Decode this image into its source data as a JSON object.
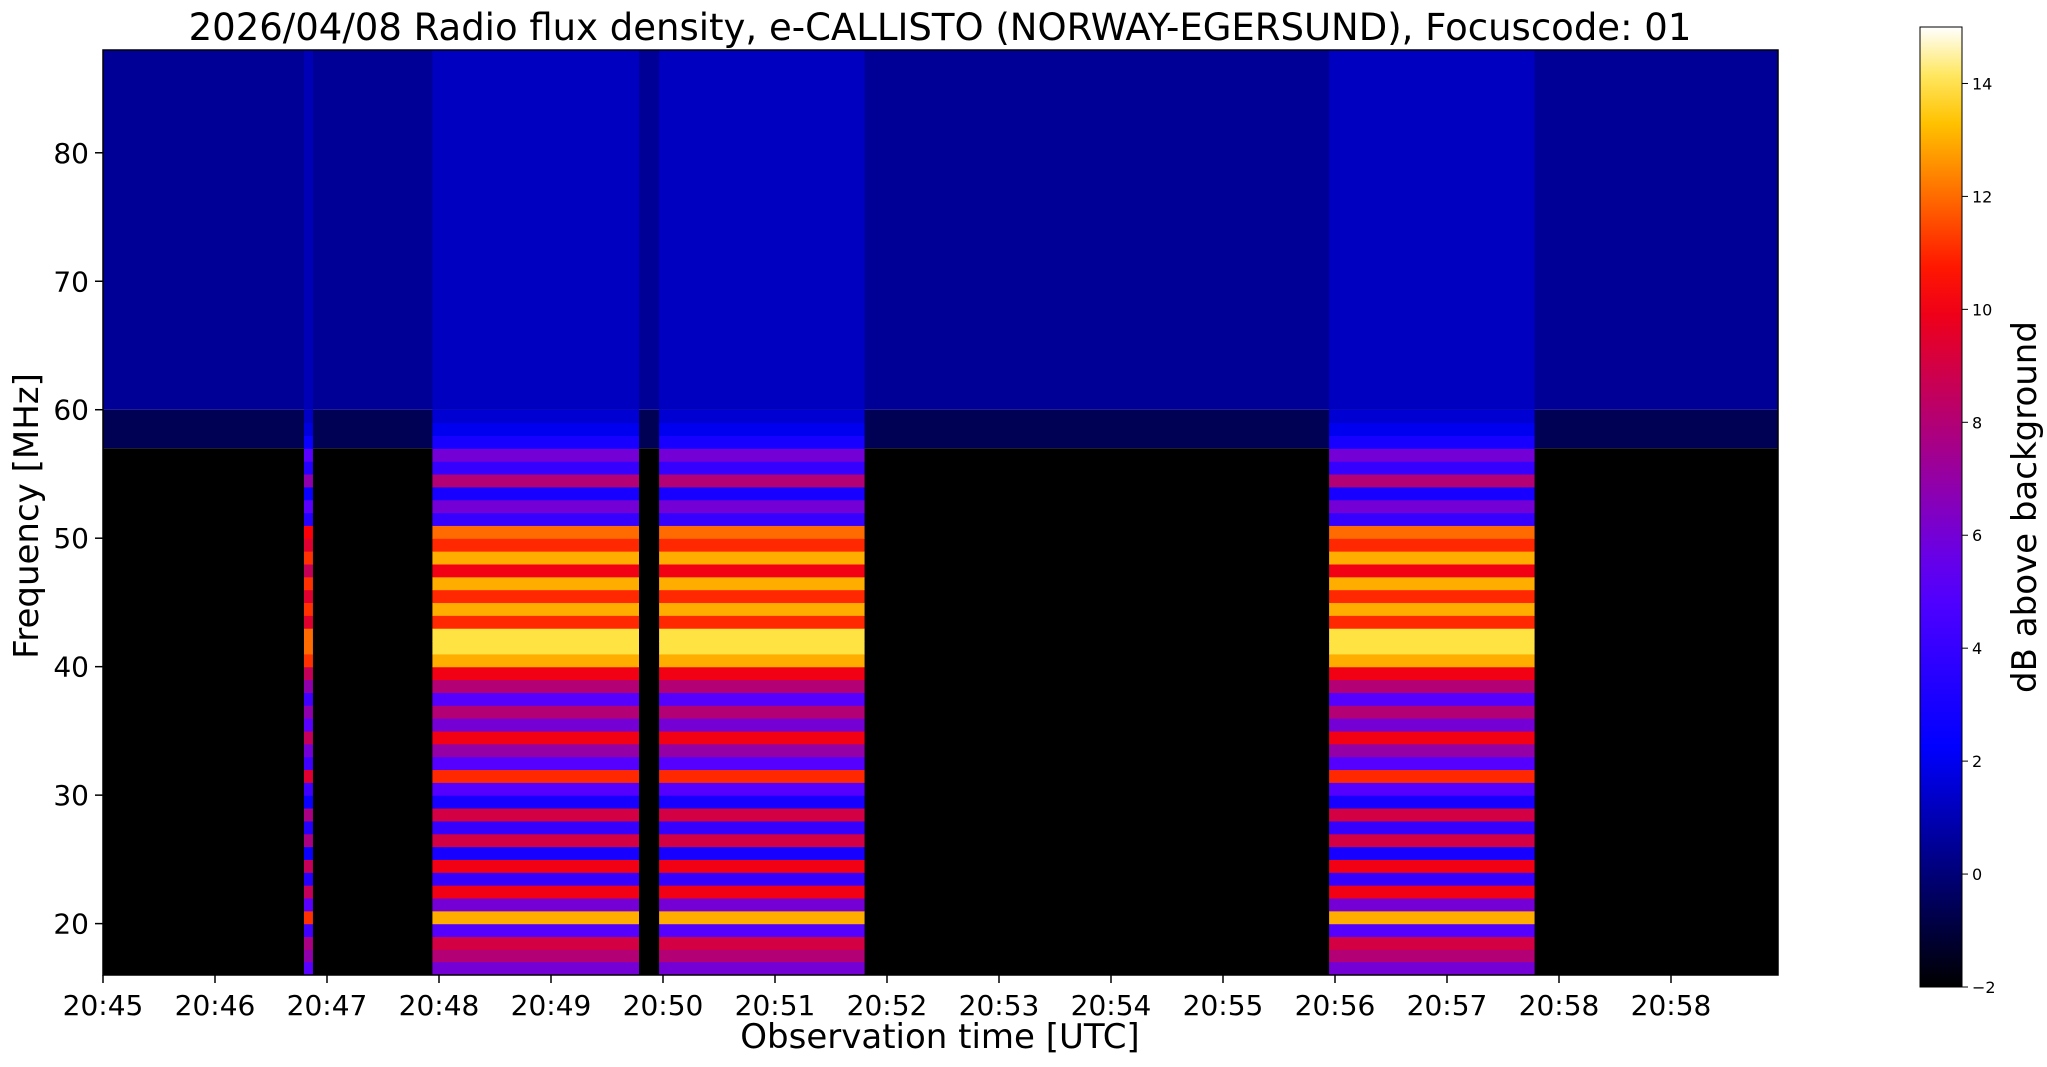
{
  "chart_data": {
    "type": "heatmap",
    "title": "2026/04/08  Radio flux density, e-CALLISTO (NORWAY-EGERSUND), Focuscode: 01",
    "xlabel": "Observation time [UTC]",
    "ylabel": "Frequency [MHz]",
    "x_ticks": [
      "20:45",
      "20:46",
      "20:47",
      "20:48",
      "20:49",
      "20:50",
      "20:51",
      "20:52",
      "20:53",
      "20:54",
      "20:55",
      "20:56",
      "20:57",
      "20:58",
      "20:58"
    ],
    "x_range_minutes": [
      0,
      15
    ],
    "y_ticks": [
      20,
      30,
      40,
      50,
      60,
      70,
      80
    ],
    "y_range": [
      16,
      88
    ],
    "colorbar": {
      "label": "dB above background",
      "ticks": [
        -2,
        0,
        2,
        4,
        6,
        8,
        10,
        12,
        14
      ],
      "range": [
        -2,
        15
      ],
      "colormap": "gnuplot2"
    },
    "bursts": [
      {
        "start_min": 1.8,
        "end_min": 1.88,
        "peak_db": 12
      },
      {
        "start_min": 2.95,
        "end_min": 4.8,
        "peak_db": 14
      },
      {
        "start_min": 4.98,
        "end_min": 6.82,
        "peak_db": 14
      },
      {
        "start_min": 10.98,
        "end_min": 12.82,
        "peak_db": 14
      }
    ],
    "band_profile_db": [
      {
        "mhz": 17,
        "db": 8
      },
      {
        "mhz": 18,
        "db": 9
      },
      {
        "mhz": 19,
        "db": 5
      },
      {
        "mhz": 20,
        "db": 13
      },
      {
        "mhz": 21,
        "db": 6
      },
      {
        "mhz": 22,
        "db": 10
      },
      {
        "mhz": 23,
        "db": 4
      },
      {
        "mhz": 24,
        "db": 10
      },
      {
        "mhz": 25,
        "db": 3
      },
      {
        "mhz": 26,
        "db": 9
      },
      {
        "mhz": 27,
        "db": 4
      },
      {
        "mhz": 28,
        "db": 9
      },
      {
        "mhz": 29,
        "db": 3
      },
      {
        "mhz": 30,
        "db": 5
      },
      {
        "mhz": 31,
        "db": 11
      },
      {
        "mhz": 32,
        "db": 5
      },
      {
        "mhz": 33,
        "db": 7
      },
      {
        "mhz": 34,
        "db": 10
      },
      {
        "mhz": 35,
        "db": 6
      },
      {
        "mhz": 36,
        "db": 8
      },
      {
        "mhz": 37,
        "db": 5
      },
      {
        "mhz": 38,
        "db": 8
      },
      {
        "mhz": 39,
        "db": 10
      },
      {
        "mhz": 40,
        "db": 13
      },
      {
        "mhz": 41,
        "db": 14
      },
      {
        "mhz": 42,
        "db": 14
      },
      {
        "mhz": 43,
        "db": 11
      },
      {
        "mhz": 44,
        "db": 13
      },
      {
        "mhz": 45,
        "db": 11
      },
      {
        "mhz": 46,
        "db": 13
      },
      {
        "mhz": 47,
        "db": 10
      },
      {
        "mhz": 48,
        "db": 13
      },
      {
        "mhz": 49,
        "db": 11
      },
      {
        "mhz": 50,
        "db": 12
      },
      {
        "mhz": 51,
        "db": 4
      },
      {
        "mhz": 52,
        "db": 6
      },
      {
        "mhz": 53,
        "db": 3
      },
      {
        "mhz": 54,
        "db": 8
      },
      {
        "mhz": 55,
        "db": 4
      },
      {
        "mhz": 56,
        "db": 6
      },
      {
        "mhz": 57,
        "db": 3
      },
      {
        "mhz": 58,
        "db": 2
      },
      {
        "mhz": 59,
        "db": 1.5
      }
    ],
    "background_db": {
      "below_57_mhz": -2,
      "above_60_mhz": 0.5
    }
  }
}
